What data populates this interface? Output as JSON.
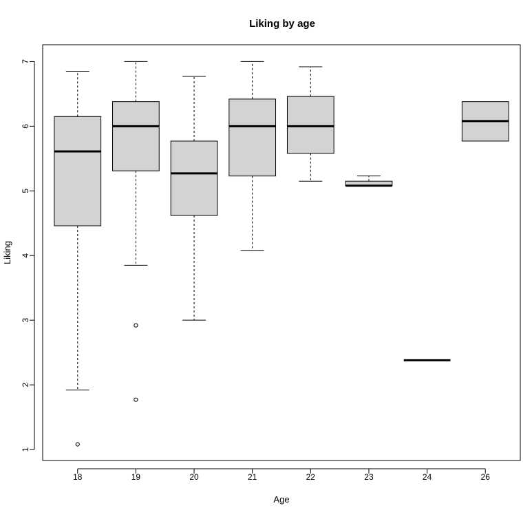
{
  "chart_data": {
    "type": "boxplot",
    "title": "Liking by age",
    "xlabel": "Age",
    "ylabel": "Liking",
    "ylim": [
      0.83,
      7.26
    ],
    "yticks": [
      1,
      2,
      3,
      4,
      5,
      6,
      7
    ],
    "grid": false,
    "colors": {
      "box_fill": "#d3d3d3",
      "stroke": "#000000"
    },
    "categories": [
      "18",
      "19",
      "20",
      "21",
      "22",
      "23",
      "24",
      "26"
    ],
    "boxes": [
      {
        "category": "18",
        "whisker_low": 1.92,
        "q1": 4.46,
        "median": 5.61,
        "q3": 6.15,
        "whisker_high": 6.85,
        "outliers": [
          1.08
        ]
      },
      {
        "category": "19",
        "whisker_low": 3.85,
        "q1": 5.31,
        "median": 6.0,
        "q3": 6.38,
        "whisker_high": 7.0,
        "outliers": [
          2.92,
          1.77
        ]
      },
      {
        "category": "20",
        "whisker_low": 3.0,
        "q1": 4.62,
        "median": 5.27,
        "q3": 5.77,
        "whisker_high": 6.77,
        "outliers": []
      },
      {
        "category": "21",
        "whisker_low": 4.08,
        "q1": 5.23,
        "median": 6.0,
        "q3": 6.42,
        "whisker_high": 7.0,
        "outliers": []
      },
      {
        "category": "22",
        "whisker_low": 5.15,
        "q1": 5.58,
        "median": 6.0,
        "q3": 6.46,
        "whisker_high": 6.92,
        "outliers": []
      },
      {
        "category": "23",
        "whisker_low": 5.08,
        "q1": 5.08,
        "median": 5.08,
        "q3": 5.15,
        "whisker_high": 5.23,
        "outliers": []
      },
      {
        "category": "24",
        "whisker_low": 2.38,
        "q1": 2.38,
        "median": 2.38,
        "q3": 2.38,
        "whisker_high": 2.38,
        "outliers": []
      },
      {
        "category": "26",
        "whisker_low": 5.77,
        "q1": 5.77,
        "median": 6.08,
        "q3": 6.38,
        "whisker_high": 6.38,
        "outliers": []
      }
    ]
  }
}
